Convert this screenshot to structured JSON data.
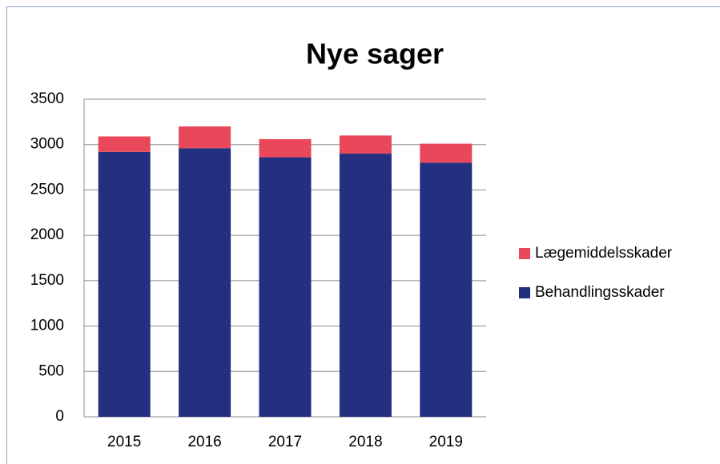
{
  "chart_data": {
    "type": "stacked_bar",
    "title": "Nye sager",
    "categories": [
      "2015",
      "2016",
      "2017",
      "2018",
      "2019"
    ],
    "series": [
      {
        "name": "Behandlingsskader",
        "color": "#232f7f",
        "values": [
          2920,
          2960,
          2860,
          2900,
          2800
        ]
      },
      {
        "name": "Lægemiddelsskader",
        "color": "#e8485a",
        "values": [
          170,
          240,
          200,
          200,
          210
        ]
      }
    ],
    "ylim": [
      0,
      3500
    ],
    "yticks": [
      0,
      500,
      1000,
      1500,
      2000,
      2500,
      3000,
      3500
    ],
    "grid": true,
    "legend": "right"
  }
}
